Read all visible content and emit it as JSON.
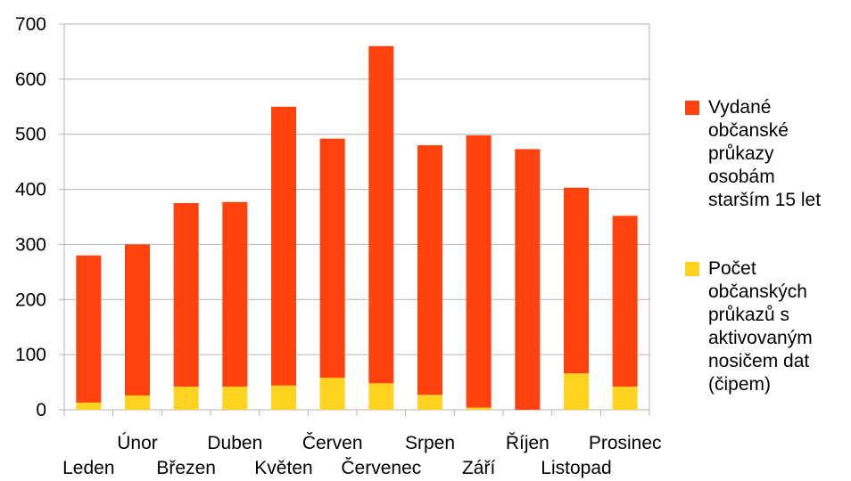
{
  "chart_data": {
    "type": "bar",
    "stacked": true,
    "categories": [
      "Leden",
      "Únor",
      "Březen",
      "Duben",
      "Květen",
      "Červen",
      "Červenec",
      "Srpen",
      "Září",
      "Říjen",
      "Listopad",
      "Prosinec"
    ],
    "series": [
      {
        "name": "Počet občanských průkazů s aktivovaným nosičem dat (čipem)",
        "color": "#ffd320",
        "values": [
          13,
          26,
          42,
          42,
          44,
          58,
          48,
          27,
          4,
          0,
          66,
          42
        ]
      },
      {
        "name": "Vydané občanské průkazy osobám starším 15 let",
        "color": "#ff420e",
        "values": [
          267,
          274,
          333,
          335,
          506,
          434,
          612,
          453,
          494,
          473,
          337,
          310
        ]
      }
    ],
    "ylim": [
      0,
      700
    ],
    "yticks": [
      "0",
      "100",
      "200",
      "300",
      "400",
      "500",
      "600",
      "700"
    ],
    "grid": "horizontal",
    "legend_position": "right",
    "legend": [
      {
        "lines": [
          "Vydané",
          "občanské",
          "průkazy",
          "osobám",
          "starším 15 let"
        ],
        "color": "#ff420e"
      },
      {
        "lines": [
          "Počet",
          "občanských",
          "průkazů s",
          "aktivovaným",
          "nosičem dat",
          "(čipem)"
        ],
        "color": "#ffd320"
      }
    ]
  }
}
